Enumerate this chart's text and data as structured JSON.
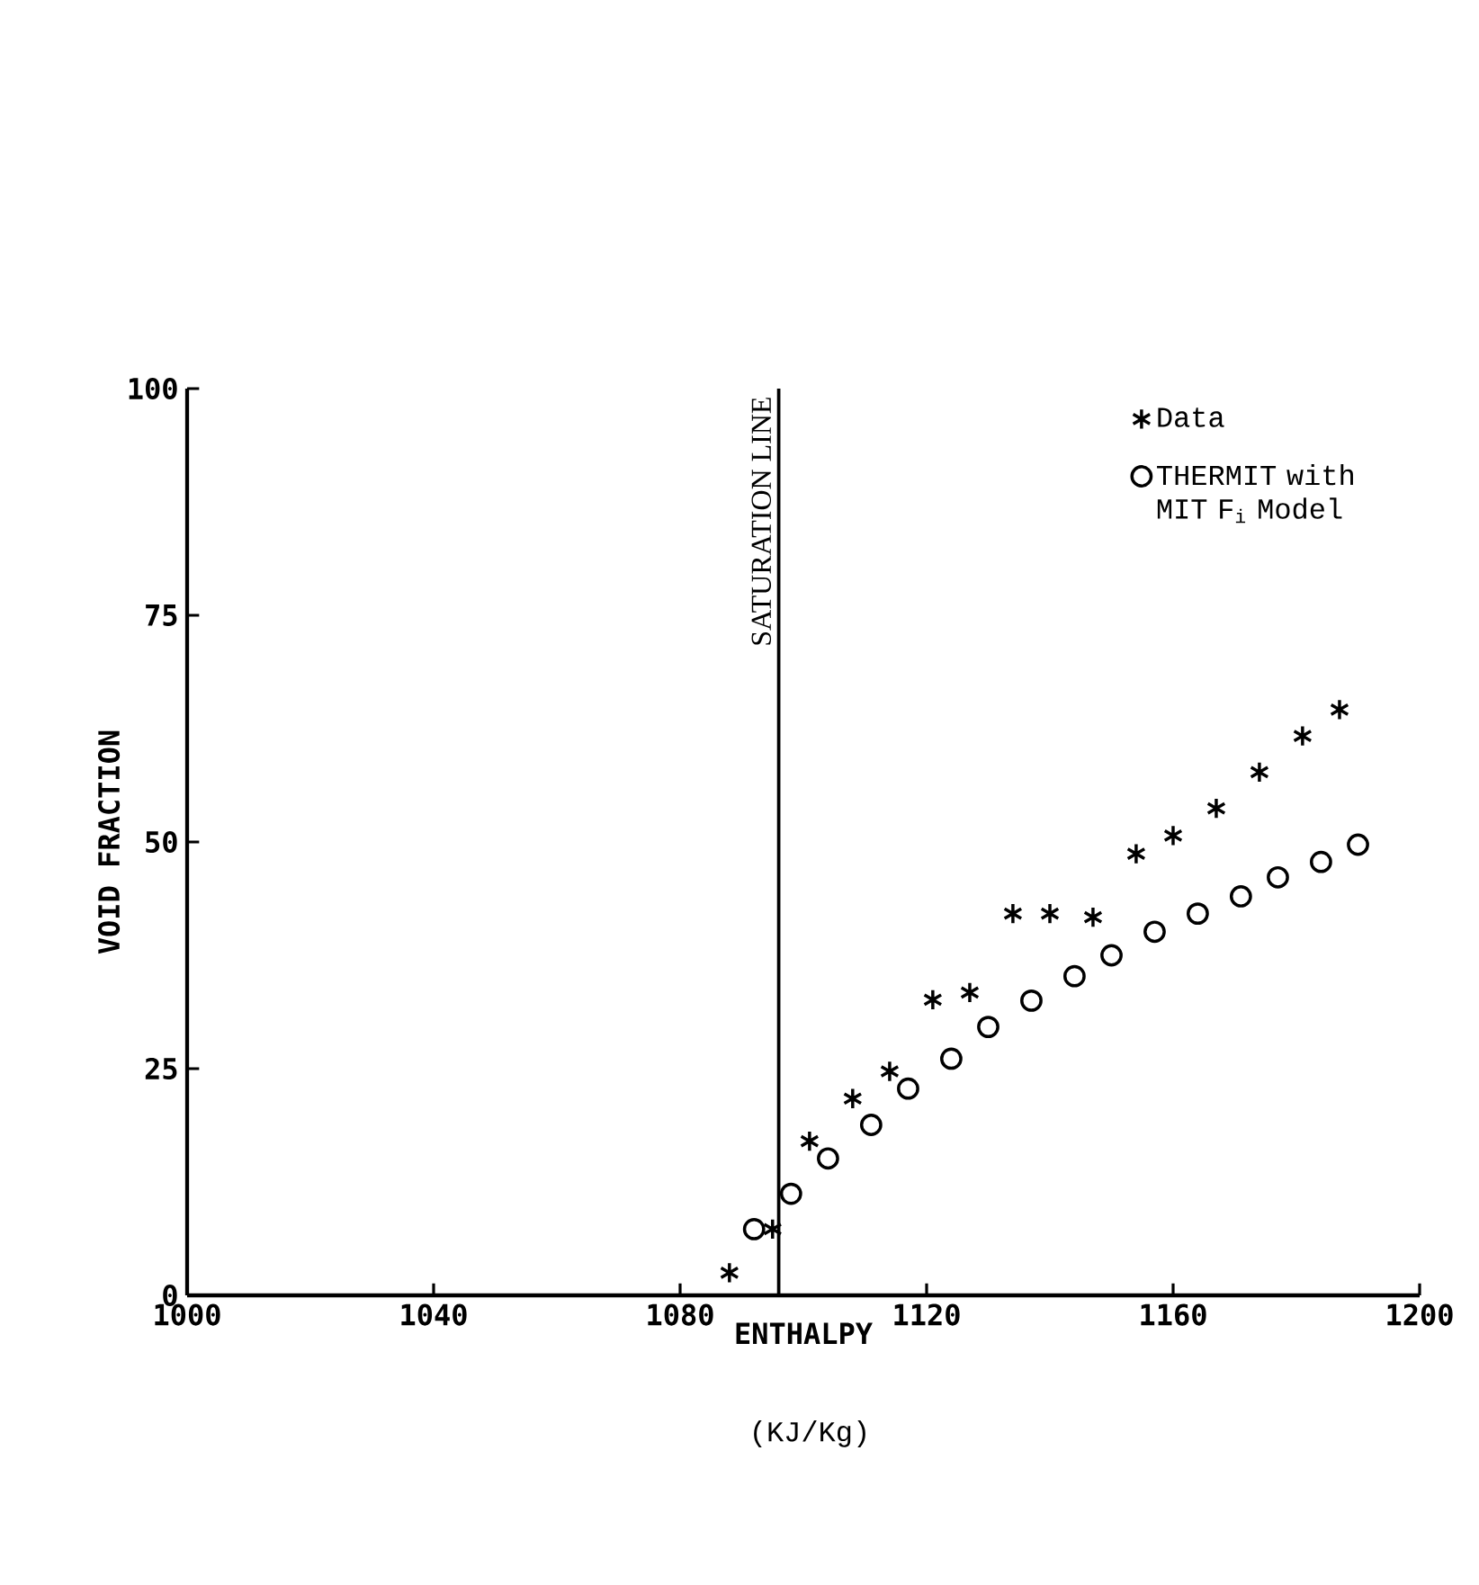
{
  "chart_data": {
    "type": "scatter",
    "xlabel": "ENTHALPY",
    "ylabel": "VOID FRACTION",
    "annotations": [
      "(KJ/Kg)"
    ],
    "xlim": [
      1000,
      1200
    ],
    "ylim": [
      0,
      100
    ],
    "xticks": [
      1000,
      1040,
      1080,
      1120,
      1160,
      1200
    ],
    "yticks": [
      0,
      25,
      50,
      75,
      100
    ],
    "grid": false,
    "legend": "top right",
    "ref_lines": [
      {
        "axis": "x",
        "value": 1096,
        "label": "SATURATION LINE",
        "color": "#000000"
      }
    ],
    "series": [
      {
        "name": "Data",
        "color": "#000000",
        "marker": "cross",
        "x": [
          1088,
          1095,
          1101,
          1108,
          1114,
          1121,
          1127,
          1134,
          1140,
          1147,
          1154,
          1160,
          1167,
          1174,
          1181,
          1187
        ],
        "values": [
          2.5,
          7.3,
          17,
          21.7,
          24.7,
          32.6,
          33.4,
          42.1,
          42.1,
          41.7,
          48.7,
          50.7,
          53.7,
          57.7,
          61.7,
          64.6
        ]
      },
      {
        "name": "THERMIT with MIT F$_{i}$ Model",
        "color": "#000000",
        "marker": "circle",
        "x": [
          1092,
          1098,
          1104,
          1111,
          1117,
          1124,
          1130,
          1137,
          1144,
          1150,
          1157,
          1164,
          1171,
          1177,
          1184,
          1190
        ],
        "values": [
          7.3,
          11.2,
          15.1,
          18.8,
          22.8,
          26.1,
          29.6,
          32.5,
          35.2,
          37.5,
          40.1,
          42.1,
          44,
          46.1,
          47.8,
          49.7
        ]
      }
    ]
  }
}
